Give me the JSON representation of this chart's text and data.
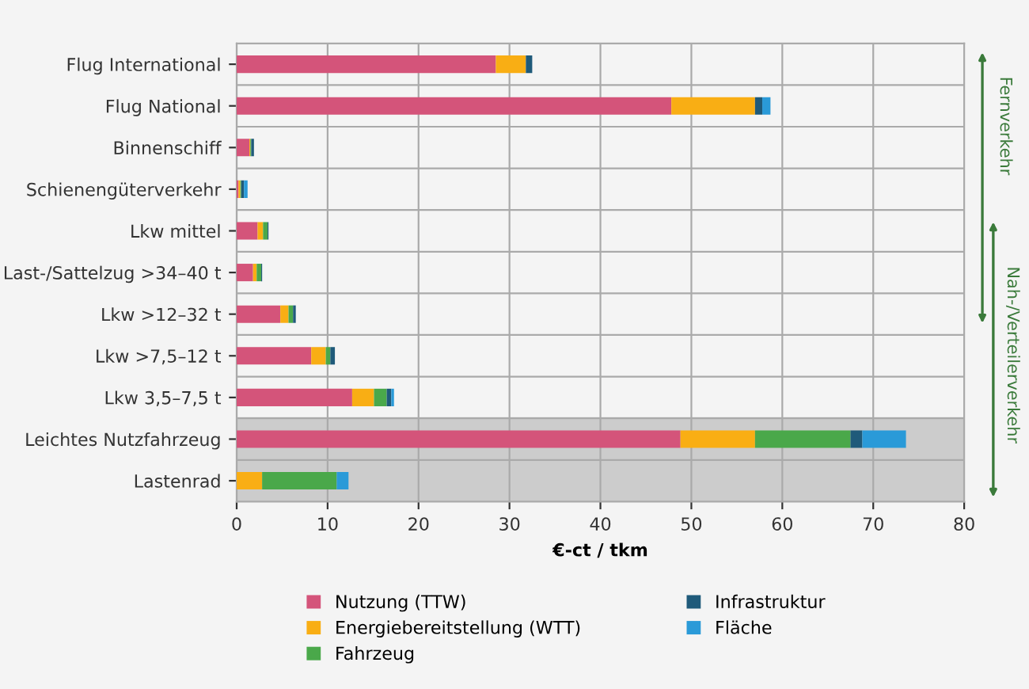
{
  "chart_data": {
    "type": "bar",
    "orientation": "horizontal",
    "stacked": true,
    "categories": [
      "Flug International",
      "Flug National",
      "Binnenschiff",
      "Schienengüterverkehr",
      "Lkw mittel",
      "Last-/Sattelzug >34–40 t",
      "Lkw >12–32 t",
      "Lkw >7,5–12 t",
      "Lkw 3,5–7,5 t",
      "Leichtes Nutzfahrzeug",
      "Lastenrad"
    ],
    "series": [
      {
        "name": "Nutzung (TTW)",
        "color": "#d4547a",
        "values": [
          28.5,
          47.8,
          1.4,
          0.2,
          2.3,
          1.8,
          4.8,
          8.2,
          12.7,
          48.8,
          0
        ]
      },
      {
        "name": "Energiebereitstellung (WTT)",
        "color": "#f9ae14",
        "values": [
          3.3,
          9.2,
          0.1,
          0.2,
          0.6,
          0.4,
          0.9,
          1.6,
          2.4,
          8.2,
          2.8
        ]
      },
      {
        "name": "Fahrzeug",
        "color": "#4aa84a",
        "values": [
          0,
          0,
          0.1,
          0.1,
          0.5,
          0.5,
          0.5,
          0.5,
          1.4,
          10.5,
          8.2
        ]
      },
      {
        "name": "Infrastruktur",
        "color": "#1f5a7a",
        "values": [
          0.7,
          0.8,
          0.3,
          0.3,
          0.1,
          0.1,
          0.3,
          0.5,
          0.5,
          1.3,
          0
        ]
      },
      {
        "name": "Fläche",
        "color": "#2a9ad8",
        "values": [
          0,
          0.9,
          0,
          0.4,
          0,
          0,
          0,
          0,
          0.3,
          4.8,
          1.3
        ]
      }
    ],
    "xlabel": "€-ct / tkm",
    "xlim": [
      0,
      80
    ],
    "xticks": [
      0,
      10,
      20,
      30,
      40,
      50,
      60,
      70,
      80
    ],
    "grid": true,
    "legend": "bottom",
    "bands": [
      {
        "axis": "y",
        "from": "Leichtes Nutzfahrzeug",
        "to": "Lastenrad",
        "color": "#cccccc"
      }
    ],
    "annotations": [
      "Fernverkehr",
      "Nah-/Verteilerverkehr"
    ]
  }
}
